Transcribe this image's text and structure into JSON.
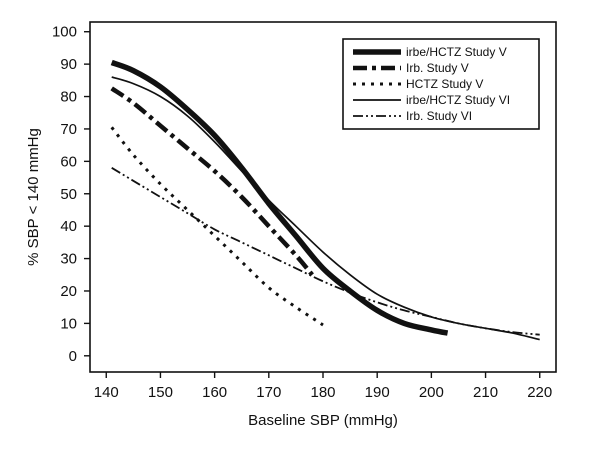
{
  "chart_data": {
    "type": "line",
    "title": "",
    "xlabel": "Baseline SBP (mmHg)",
    "ylabel": "% SBP < 140 mmHg",
    "xlim": [
      137,
      223
    ],
    "ylim": [
      -5,
      103
    ],
    "xticks": [
      140,
      150,
      160,
      170,
      180,
      190,
      200,
      210,
      220
    ],
    "yticks": [
      0,
      10,
      20,
      30,
      40,
      50,
      60,
      70,
      80,
      90,
      100
    ],
    "grid": false,
    "legend_position": "top-right",
    "series": [
      {
        "name": "irbe/HCTZ Study V",
        "style": "thick-solid",
        "x": [
          141,
          145,
          150,
          155,
          160,
          165,
          170,
          175,
          180,
          185,
          190,
          195,
          200,
          203
        ],
        "y": [
          90.5,
          88,
          83,
          76,
          68,
          58,
          47,
          37,
          27,
          20,
          14,
          10,
          8,
          7
        ]
      },
      {
        "name": "Irb. Study V",
        "style": "dash-dot",
        "x": [
          141,
          145,
          150,
          155,
          160,
          165,
          170,
          175,
          178
        ],
        "y": [
          82.5,
          78,
          71,
          64,
          57,
          49,
          40,
          31,
          25
        ]
      },
      {
        "name": "HCTZ Study V",
        "style": "dotted",
        "x": [
          141,
          145,
          150,
          155,
          160,
          165,
          170,
          175,
          180
        ],
        "y": [
          70.5,
          62,
          53,
          45,
          37,
          29,
          21,
          15,
          9.5
        ]
      },
      {
        "name": "irbe/HCTZ Study VI",
        "style": "thin-solid",
        "x": [
          141,
          145,
          150,
          155,
          160,
          165,
          170,
          175,
          180,
          185,
          190,
          195,
          200,
          205,
          210,
          215,
          220
        ],
        "y": [
          86,
          84,
          80,
          74,
          66,
          57,
          48,
          40,
          32,
          25,
          19,
          15,
          12,
          10,
          8.5,
          7,
          5
        ]
      },
      {
        "name": "Irb. Study VI",
        "style": "dash-dot-dot",
        "x": [
          141,
          145,
          150,
          155,
          160,
          165,
          170,
          175,
          180,
          185,
          190,
          195,
          200,
          205,
          210,
          215,
          220
        ],
        "y": [
          58,
          54,
          49,
          44,
          39,
          35,
          31,
          27,
          23,
          19.5,
          16.5,
          14,
          12,
          10,
          8.5,
          7.3,
          6.5
        ]
      }
    ]
  }
}
